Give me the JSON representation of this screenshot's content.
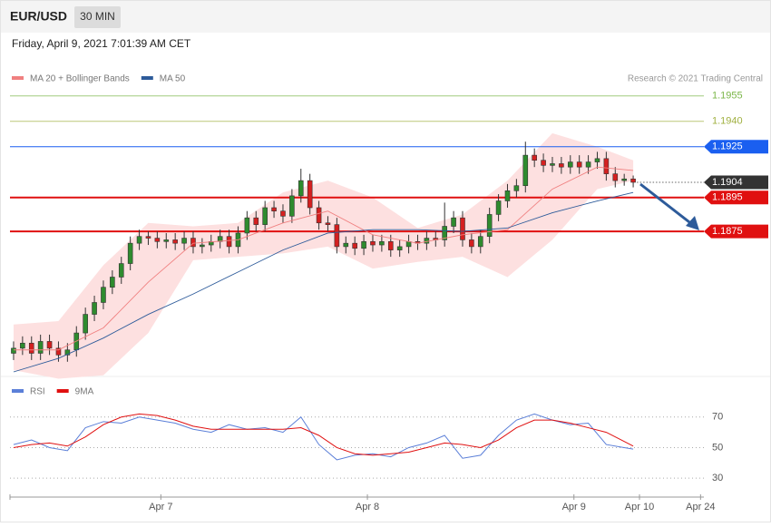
{
  "header": {
    "symbol": "EUR/USD",
    "interval": "30 MIN",
    "timestamp": "Friday, April 9, 2021 7:01:39 AM CET"
  },
  "chart_data": [
    {
      "type": "candlestick",
      "legend": [
        {
          "name": "MA 20 + Bollinger Bands",
          "color": "#f08080"
        },
        {
          "name": "MA 50",
          "color": "#2d5b9a"
        }
      ],
      "credit": "Research © 2021 Trading Central",
      "ylim": [
        1.1792,
        1.1964
      ],
      "xlim": [
        -0.4,
        76.87
      ],
      "xticks": [
        {
          "value": 16.4,
          "label": "Apr 7"
        },
        {
          "value": 39.4,
          "label": "Apr 8"
        },
        {
          "value": 62.4,
          "label": "Apr 9"
        },
        {
          "value": 69.7,
          "label": "Apr 10"
        },
        {
          "value": 76.5,
          "label": "Apr 24"
        }
      ],
      "up_color": "#2e8b2e",
      "down_color": "#d42020",
      "candles": {
        "open": [
          1.1803,
          1.1806,
          1.1809,
          1.1803,
          1.181,
          1.1806,
          1.1802,
          1.1805,
          1.1815,
          1.1826,
          1.1833,
          1.1842,
          1.1848,
          1.1856,
          1.1868,
          1.1872,
          1.1871,
          1.1869,
          1.187,
          1.1868,
          1.1871,
          1.1866,
          1.1867,
          1.1869,
          1.1872,
          1.1866,
          1.1874,
          1.1883,
          1.1879,
          1.1889,
          1.1887,
          1.1884,
          1.1896,
          1.1905,
          1.1889,
          1.188,
          1.1879,
          1.1866,
          1.1868,
          1.1865,
          1.1869,
          1.1867,
          1.1869,
          1.1864,
          1.1866,
          1.1869,
          1.1868,
          1.1871,
          1.187,
          1.1878,
          1.1883,
          1.187,
          1.1866,
          1.1872,
          1.1885,
          1.1893,
          1.1899,
          1.1902,
          1.192,
          1.1917,
          1.1914,
          1.1915,
          1.1913,
          1.1916,
          1.1913,
          1.1916,
          1.1918,
          1.1909,
          1.1905,
          1.1906
        ],
        "high": [
          1.181,
          1.1813,
          1.1813,
          1.1814,
          1.1814,
          1.181,
          1.1809,
          1.1819,
          1.183,
          1.1837,
          1.1846,
          1.1852,
          1.186,
          1.1872,
          1.1876,
          1.1875,
          1.1875,
          1.1874,
          1.1874,
          1.1875,
          1.1875,
          1.1871,
          1.1873,
          1.1876,
          1.1876,
          1.1878,
          1.1887,
          1.1887,
          1.1893,
          1.1893,
          1.1891,
          1.19,
          1.1912,
          1.1909,
          1.1893,
          1.1884,
          1.1883,
          1.1872,
          1.1872,
          1.1873,
          1.1873,
          1.1873,
          1.1873,
          1.187,
          1.1873,
          1.1873,
          1.1875,
          1.1875,
          1.1892,
          1.1887,
          1.1887,
          1.1874,
          1.1876,
          1.1889,
          1.1897,
          1.1903,
          1.1906,
          1.1928,
          1.1924,
          1.1921,
          1.1919,
          1.1919,
          1.192,
          1.192,
          1.192,
          1.1922,
          1.1922,
          1.1913,
          1.1909,
          1.1908
        ],
        "low": [
          1.1799,
          1.1802,
          1.1799,
          1.1799,
          1.1802,
          1.1798,
          1.1798,
          1.1801,
          1.1811,
          1.1822,
          1.1829,
          1.1838,
          1.1844,
          1.1852,
          1.1864,
          1.1867,
          1.1865,
          1.1865,
          1.1864,
          1.1864,
          1.1862,
          1.1862,
          1.1863,
          1.1865,
          1.1862,
          1.1862,
          1.187,
          1.1875,
          1.1875,
          1.1883,
          1.188,
          1.188,
          1.1892,
          1.1885,
          1.1876,
          1.1875,
          1.1862,
          1.1862,
          1.1861,
          1.1861,
          1.1863,
          1.1863,
          1.186,
          1.186,
          1.1862,
          1.1864,
          1.1864,
          1.1866,
          1.1866,
          1.1874,
          1.1866,
          1.1862,
          1.1862,
          1.1868,
          1.1881,
          1.1889,
          1.1895,
          1.1898,
          1.1913,
          1.191,
          1.191,
          1.1909,
          1.1909,
          1.1909,
          1.1909,
          1.1912,
          1.1905,
          1.1901,
          1.1902,
          1.1901
        ],
        "close": [
          1.1806,
          1.1809,
          1.1803,
          1.181,
          1.1806,
          1.1802,
          1.1805,
          1.1815,
          1.1826,
          1.1833,
          1.1842,
          1.1848,
          1.1856,
          1.1868,
          1.1872,
          1.1871,
          1.1869,
          1.187,
          1.1868,
          1.1871,
          1.1866,
          1.1867,
          1.1869,
          1.1872,
          1.1866,
          1.1874,
          1.1883,
          1.1879,
          1.1889,
          1.1887,
          1.1884,
          1.1896,
          1.1905,
          1.1889,
          1.188,
          1.1879,
          1.1866,
          1.1868,
          1.1865,
          1.1869,
          1.1867,
          1.1869,
          1.1864,
          1.1866,
          1.1869,
          1.1868,
          1.1871,
          1.187,
          1.1878,
          1.1883,
          1.187,
          1.1866,
          1.1872,
          1.1885,
          1.1893,
          1.1899,
          1.1902,
          1.192,
          1.1917,
          1.1914,
          1.1915,
          1.1913,
          1.1916,
          1.1913,
          1.1916,
          1.1918,
          1.1909,
          1.1905,
          1.1906,
          1.1904
        ]
      },
      "band": {
        "color": "#fde0e0",
        "x": [
          0,
          5,
          10,
          15,
          20,
          25,
          30,
          35,
          40,
          45,
          50,
          55,
          60,
          65,
          69
        ],
        "upper": [
          1.182,
          1.1822,
          1.1855,
          1.188,
          1.1878,
          1.188,
          1.1898,
          1.1905,
          1.1895,
          1.1877,
          1.1885,
          1.1905,
          1.1933,
          1.1925,
          1.1917
        ],
        "lower": [
          1.1793,
          1.1788,
          1.179,
          1.1815,
          1.1858,
          1.186,
          1.1862,
          1.1866,
          1.1853,
          1.1857,
          1.186,
          1.1848,
          1.187,
          1.19,
          1.1905
        ]
      },
      "series": [
        {
          "name": "MA 20",
          "color": "#f08080",
          "x": [
            0,
            5,
            10,
            15,
            20,
            25,
            30,
            35,
            40,
            45,
            50,
            55,
            60,
            65,
            69
          ],
          "values": [
            1.1805,
            1.1805,
            1.1818,
            1.1845,
            1.1868,
            1.187,
            1.188,
            1.1887,
            1.1873,
            1.1868,
            1.1873,
            1.1876,
            1.19,
            1.1913,
            1.1911
          ]
        },
        {
          "name": "MA 50",
          "color": "#2d5b9a",
          "x": [
            0,
            5,
            10,
            15,
            20,
            25,
            30,
            35,
            40,
            45,
            50,
            55,
            60,
            65,
            69
          ],
          "values": [
            1.1792,
            1.18,
            1.1812,
            1.1826,
            1.1838,
            1.1851,
            1.1864,
            1.1874,
            1.1876,
            1.1876,
            1.1875,
            1.1877,
            1.1886,
            1.1893,
            1.1898
          ]
        }
      ],
      "levels": [
        {
          "value": 1.1955,
          "label": "1.1955",
          "color": "#7ab648",
          "style": "thin"
        },
        {
          "value": 1.194,
          "label": "1.1940",
          "color": "#a0b040",
          "style": "thin"
        },
        {
          "value": 1.1925,
          "label": "1.1925",
          "color": "#1a5ff0",
          "style": "tag"
        },
        {
          "value": 1.1904,
          "label": "1.1904",
          "color": "#333333",
          "style": "current"
        },
        {
          "value": 1.1895,
          "label": "1.1895",
          "color": "#e01010",
          "style": "thick"
        },
        {
          "value": 1.1875,
          "label": "1.1875",
          "color": "#e01010",
          "style": "thick"
        }
      ]
    },
    {
      "type": "line",
      "ylim": [
        20,
        85
      ],
      "yticks": [
        30,
        50,
        70
      ],
      "grid": true,
      "series": [
        {
          "name": "RSI",
          "color": "#5b7fd8",
          "x": [
            0,
            2,
            4,
            6,
            8,
            10,
            12,
            14,
            16,
            18,
            20,
            22,
            24,
            26,
            28,
            30,
            32,
            34,
            36,
            38,
            40,
            42,
            44,
            46,
            48,
            50,
            52,
            54,
            56,
            58,
            60,
            62,
            64,
            66,
            68,
            69
          ],
          "values": [
            52,
            55,
            50,
            48,
            63,
            67,
            66,
            70,
            68,
            66,
            62,
            60,
            65,
            62,
            63,
            60,
            70,
            52,
            42,
            45,
            46,
            44,
            50,
            53,
            58,
            43,
            45,
            58,
            68,
            72,
            68,
            65,
            66,
            52,
            50,
            49
          ]
        },
        {
          "name": "9MA",
          "color": "#e01010",
          "x": [
            0,
            2,
            4,
            6,
            8,
            10,
            12,
            14,
            16,
            18,
            20,
            22,
            24,
            26,
            28,
            30,
            32,
            34,
            36,
            38,
            40,
            42,
            44,
            46,
            48,
            50,
            52,
            54,
            56,
            58,
            60,
            62,
            64,
            66,
            68,
            69
          ],
          "values": [
            50,
            52,
            53,
            51,
            57,
            65,
            70,
            72,
            71,
            68,
            64,
            62,
            62,
            62,
            62,
            62,
            63,
            58,
            50,
            46,
            45,
            46,
            47,
            50,
            53,
            52,
            50,
            55,
            63,
            68,
            68,
            66,
            63,
            60,
            54,
            51
          ]
        }
      ]
    }
  ]
}
